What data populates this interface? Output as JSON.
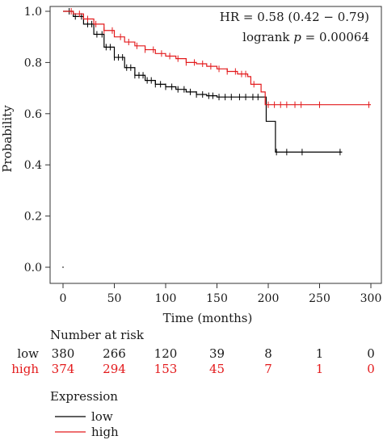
{
  "chart_data": {
    "type": "line",
    "subtype": "kaplan-meier",
    "title": "",
    "xlabel": "Time (months)",
    "ylabel": "Probability",
    "xlim": [
      0,
      300
    ],
    "ylim": [
      0,
      1
    ],
    "x_ticks": [
      "0",
      "50",
      "100",
      "150",
      "200",
      "250",
      "300"
    ],
    "y_ticks": [
      "0.0",
      "0.2",
      "0.4",
      "0.6",
      "0.8",
      "1.0"
    ],
    "x_tick_values": [
      0,
      50,
      100,
      150,
      200,
      250,
      300
    ],
    "y_tick_values": [
      0,
      0.2,
      0.4,
      0.6,
      0.8,
      1.0
    ],
    "grid": false,
    "annotations": {
      "hr": "HR = 0.58 (0.42 − 0.79)",
      "logrank_prefix": "logrank",
      "logrank_p_symbol": "p",
      "logrank_value": "= 0.00064"
    },
    "series": [
      {
        "name": "low",
        "color": "#000000",
        "x": [
          0,
          10,
          20,
          30,
          40,
          50,
          60,
          70,
          80,
          90,
          100,
          110,
          120,
          130,
          140,
          150,
          160,
          170,
          180,
          190,
          195,
          198,
          203,
          207,
          272
        ],
        "y": [
          1.0,
          0.98,
          0.95,
          0.91,
          0.86,
          0.82,
          0.78,
          0.75,
          0.73,
          0.715,
          0.705,
          0.695,
          0.685,
          0.675,
          0.67,
          0.665,
          0.665,
          0.665,
          0.665,
          0.665,
          0.665,
          0.57,
          0.57,
          0.45,
          0.45
        ],
        "censor_x": [
          6,
          12,
          18,
          24,
          28,
          33,
          38,
          42,
          46,
          50,
          54,
          58,
          62,
          66,
          70,
          74,
          78,
          82,
          86,
          90,
          95,
          100,
          106,
          112,
          118,
          124,
          130,
          136,
          142,
          146,
          152,
          158,
          164,
          172,
          178,
          185,
          190,
          208,
          218,
          233,
          270
        ]
      },
      {
        "name": "high",
        "color": "#e31a1c",
        "x": [
          0,
          10,
          20,
          30,
          40,
          50,
          60,
          70,
          80,
          90,
          100,
          110,
          120,
          130,
          140,
          150,
          160,
          170,
          180,
          183,
          190,
          193,
          197,
          300
        ],
        "y": [
          1.0,
          0.99,
          0.97,
          0.95,
          0.925,
          0.9,
          0.88,
          0.865,
          0.85,
          0.835,
          0.825,
          0.815,
          0.8,
          0.795,
          0.785,
          0.775,
          0.765,
          0.755,
          0.745,
          0.715,
          0.715,
          0.685,
          0.635,
          0.635
        ],
        "censor_x": [
          8,
          16,
          24,
          32,
          40,
          48,
          56,
          64,
          72,
          80,
          88,
          96,
          104,
          112,
          120,
          128,
          136,
          144,
          152,
          160,
          168,
          174,
          178,
          186,
          200,
          206,
          212,
          218,
          226,
          232,
          250,
          298
        ]
      }
    ],
    "risk_table": {
      "title": "Number at risk",
      "rows": [
        {
          "label": "low",
          "color": "#1a1a1a",
          "values": [
            "380",
            "266",
            "120",
            "39",
            "8",
            "1",
            "0"
          ]
        },
        {
          "label": "high",
          "color": "#e31a1c",
          "values": [
            "374",
            "294",
            "153",
            "45",
            "7",
            "1",
            "0"
          ]
        }
      ]
    },
    "legend": {
      "title": "Expression",
      "placement": "bottom-left",
      "items": [
        {
          "label": "low",
          "color": "#000000"
        },
        {
          "label": "high",
          "color": "#e31a1c"
        }
      ]
    }
  }
}
